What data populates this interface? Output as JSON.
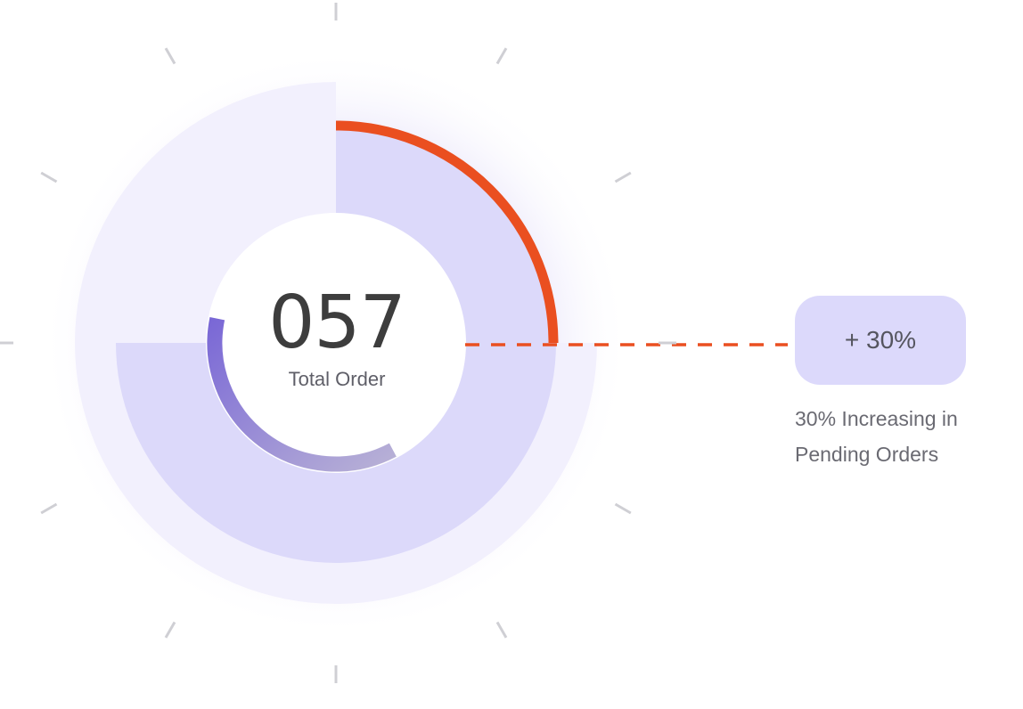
{
  "stat": {
    "value": "057",
    "label": "Total Order"
  },
  "change": {
    "badge": "+ 30%",
    "description": "30% Increasing in Pending Orders",
    "progress_fraction": 0.25
  },
  "inner_progress_fraction": 0.36,
  "colors": {
    "accent": "#ea4f20",
    "ring_fill": "#dcd9fa",
    "outer_ring": "#f2f0fd",
    "inner_arc_start": "#7a68d6",
    "inner_arc_end": "#b8b1d6",
    "badge_bg": "#dcd9fb",
    "tick": "#cfcfd4"
  },
  "icons": {
    "ticks": "gauge-tick-marks"
  }
}
